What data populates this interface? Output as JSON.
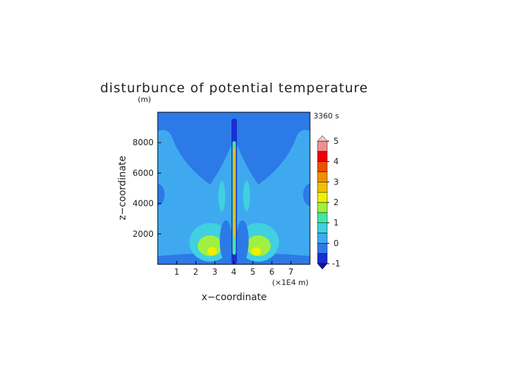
{
  "chart_data": {
    "type": "contour",
    "title": "disturbunce of potential temperature",
    "y_unit": "(m)",
    "x_unit": "(×1E4 m)",
    "time_label": "3360 s",
    "x_label": "x−coordinate",
    "y_label": "z−coordinate",
    "xlim": [
      0,
      8
    ],
    "xticks": [
      1,
      2,
      3,
      4,
      5,
      6,
      7
    ],
    "ylim": [
      0,
      10000
    ],
    "yticks": [
      2000,
      4000,
      6000,
      8000
    ],
    "levels": [
      -1,
      -0.5,
      0,
      0.5,
      1,
      1.5,
      2,
      2.5,
      3,
      3.5,
      4,
      4.5,
      5
    ],
    "level_colors": [
      "#1a2fd0",
      "#2c7ae8",
      "#3fa9f0",
      "#40d0e0",
      "#40e8a0",
      "#a0f040",
      "#f0f000",
      "#f0c000",
      "#f09000",
      "#f05000",
      "#f00000",
      "#f09090"
    ],
    "under_color": "#1010a0",
    "over_color": "#f8c8c8",
    "colorbar_ticks": [
      -1,
      0,
      1,
      2,
      3,
      4,
      5
    ]
  }
}
